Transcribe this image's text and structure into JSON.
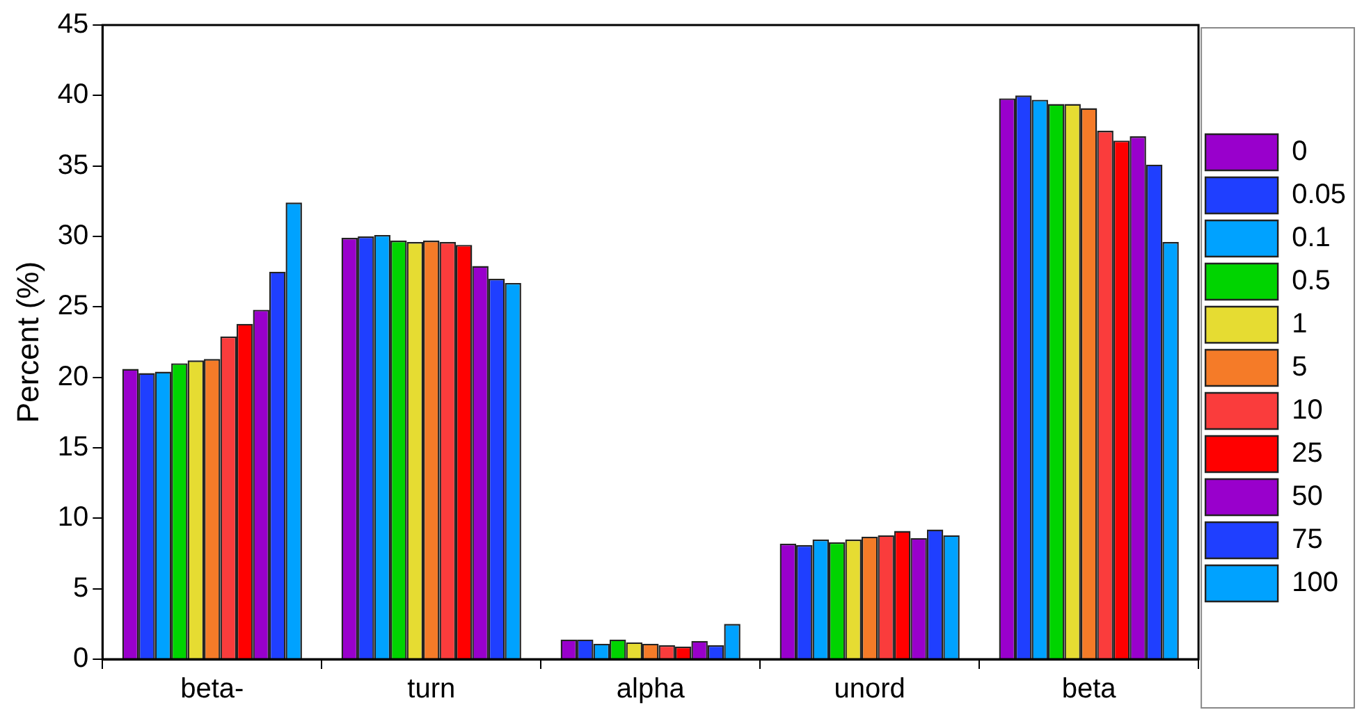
{
  "chart_data": {
    "type": "bar",
    "ylabel": "Percent (%)",
    "categories": [
      "beta-",
      "turn",
      "alpha",
      "unord",
      "beta"
    ],
    "ylim": [
      0,
      45
    ],
    "yticks": [
      0,
      5,
      10,
      15,
      20,
      25,
      30,
      35,
      40,
      45
    ],
    "grid": false,
    "legend": "right",
    "series": [
      {
        "name": "0",
        "color": "#9900cc",
        "values": [
          20.6,
          29.9,
          1.4,
          8.2,
          39.8
        ]
      },
      {
        "name": "0.05",
        "color": "#1f3fff",
        "values": [
          20.3,
          30.0,
          1.4,
          8.1,
          40.0
        ]
      },
      {
        "name": "0.1",
        "color": "#00a2ff",
        "values": [
          20.4,
          30.1,
          1.1,
          8.5,
          39.7
        ]
      },
      {
        "name": "0.5",
        "color": "#00d400",
        "values": [
          21.0,
          29.7,
          1.4,
          8.3,
          39.4
        ]
      },
      {
        "name": "1",
        "color": "#e6dc32",
        "values": [
          21.2,
          29.6,
          1.2,
          8.5,
          39.4
        ]
      },
      {
        "name": "5",
        "color": "#f57b28",
        "values": [
          21.3,
          29.7,
          1.1,
          8.7,
          39.1
        ]
      },
      {
        "name": "10",
        "color": "#fa3c3c",
        "values": [
          22.9,
          29.6,
          1.0,
          8.8,
          37.5
        ]
      },
      {
        "name": "25",
        "color": "#ff0000",
        "values": [
          23.8,
          29.4,
          0.9,
          9.1,
          36.8
        ]
      },
      {
        "name": "50",
        "color": "#9900cc",
        "values": [
          24.8,
          27.9,
          1.3,
          8.6,
          37.1
        ]
      },
      {
        "name": "75",
        "color": "#1f3fff",
        "values": [
          27.5,
          27.0,
          1.0,
          9.2,
          35.1
        ]
      },
      {
        "name": "100",
        "color": "#00a2ff",
        "values": [
          32.4,
          26.7,
          2.5,
          8.8,
          29.6
        ]
      }
    ]
  }
}
